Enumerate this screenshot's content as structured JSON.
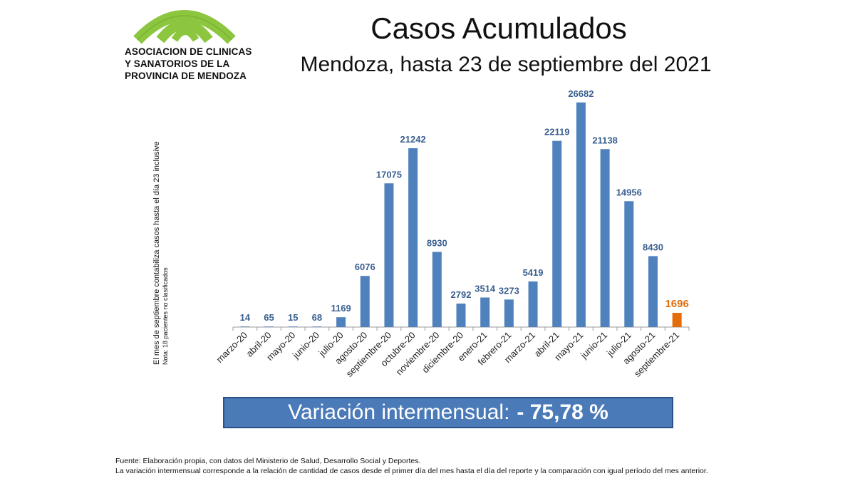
{
  "logo": {
    "lines": [
      "ASOCIACION DE CLINICAS",
      "Y SANATORIOS DE LA",
      "PROVINCIA DE MENDOZA"
    ]
  },
  "header": {
    "title": "Casos Acumulados",
    "subtitle": "Mendoza, hasta 23 de septiembre del 2021"
  },
  "side_note": {
    "line1": "El mes de septiembre contabiliza casos hasta el día 23 inclusive",
    "line2": "Nota: 18 pacientes no clasificados"
  },
  "banner": {
    "label": "Variación intermensual:",
    "value": "- 75,78 %"
  },
  "footer": {
    "source": "Fuente: Elaboración propia, con datos del Ministerio de Salud, Desarrollo Social y Deportes.",
    "note": "La variación intermensual corresponde a la relación de cantidad de casos desde el primer día del mes hasta el día del reporte y la comparación con igual período del mes anterior."
  },
  "colors": {
    "bar": "#4f81bd",
    "highlight": "#e46c0a",
    "label": "#3a5f8f",
    "logo_green": "#8cc63f"
  },
  "chart_data": {
    "type": "bar",
    "title": "Casos Acumulados",
    "categories": [
      "marzo-20",
      "abril-20",
      "mayo-20",
      "junio-20",
      "julio-20",
      "agosto-20",
      "septiembre-20",
      "octubre-20",
      "noviembre-20",
      "diciembre-20",
      "enero-21",
      "febrero-21",
      "marzo-21",
      "abril-21",
      "mayo-21",
      "junio-21",
      "julio-21",
      "agosto-21",
      "septiembre-21"
    ],
    "values": [
      14,
      65,
      15,
      68,
      1169,
      6076,
      17075,
      21242,
      8930,
      2792,
      3514,
      3273,
      5419,
      22119,
      26682,
      21138,
      14956,
      8430,
      1696
    ],
    "highlight_index": 18,
    "ylim": [
      0,
      27000
    ],
    "grid": false,
    "xlabel": "",
    "ylabel": ""
  }
}
